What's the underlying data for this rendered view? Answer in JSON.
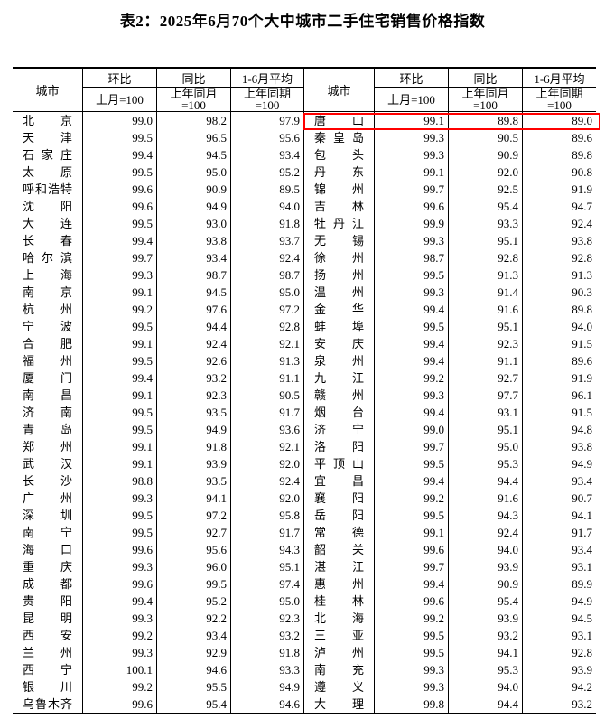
{
  "title": "表2：2025年6月70个大中城市二手住宅销售价格指数",
  "colors": {
    "background": "#ffffff",
    "text": "#000000",
    "table_border": "#000000",
    "highlight_border": "#ff0000"
  },
  "header": {
    "city": "城市",
    "mom_label": "环比",
    "mom_base": "上月=100",
    "yoy_label": "同比",
    "yoy_base_line1": "上年同月",
    "yoy_base_line2": "=100",
    "avg_label": "1-6月平均",
    "avg_base_line1": "上年同期",
    "avg_base_line2": "=100"
  },
  "highlight": {
    "city": "唐山",
    "half": "right",
    "row_index": 0,
    "values": [
      "99.1",
      "89.8",
      "89.0"
    ]
  },
  "left_rows": [
    {
      "city": "北京",
      "mom": "99.0",
      "yoy": "98.2",
      "avg": "97.9"
    },
    {
      "city": "天津",
      "mom": "99.5",
      "yoy": "96.5",
      "avg": "95.6"
    },
    {
      "city": "石家庄",
      "mom": "99.4",
      "yoy": "94.5",
      "avg": "93.4"
    },
    {
      "city": "太原",
      "mom": "99.5",
      "yoy": "95.0",
      "avg": "95.2"
    },
    {
      "city": "呼和浩特",
      "mom": "99.6",
      "yoy": "90.9",
      "avg": "89.5"
    },
    {
      "city": "沈阳",
      "mom": "99.6",
      "yoy": "94.9",
      "avg": "94.0"
    },
    {
      "city": "大连",
      "mom": "99.5",
      "yoy": "93.0",
      "avg": "91.8"
    },
    {
      "city": "长春",
      "mom": "99.4",
      "yoy": "93.8",
      "avg": "93.7"
    },
    {
      "city": "哈尔滨",
      "mom": "99.7",
      "yoy": "93.4",
      "avg": "92.4"
    },
    {
      "city": "上海",
      "mom": "99.3",
      "yoy": "98.7",
      "avg": "98.7"
    },
    {
      "city": "南京",
      "mom": "99.1",
      "yoy": "94.5",
      "avg": "95.0"
    },
    {
      "city": "杭州",
      "mom": "99.2",
      "yoy": "97.6",
      "avg": "97.2"
    },
    {
      "city": "宁波",
      "mom": "99.5",
      "yoy": "94.4",
      "avg": "92.8"
    },
    {
      "city": "合肥",
      "mom": "99.1",
      "yoy": "92.4",
      "avg": "92.1"
    },
    {
      "city": "福州",
      "mom": "99.5",
      "yoy": "92.6",
      "avg": "91.3"
    },
    {
      "city": "厦门",
      "mom": "99.4",
      "yoy": "93.2",
      "avg": "91.1"
    },
    {
      "city": "南昌",
      "mom": "99.1",
      "yoy": "92.3",
      "avg": "90.5"
    },
    {
      "city": "济南",
      "mom": "99.5",
      "yoy": "93.5",
      "avg": "91.7"
    },
    {
      "city": "青岛",
      "mom": "99.5",
      "yoy": "94.9",
      "avg": "93.6"
    },
    {
      "city": "郑州",
      "mom": "99.1",
      "yoy": "91.8",
      "avg": "92.1"
    },
    {
      "city": "武汉",
      "mom": "99.1",
      "yoy": "93.9",
      "avg": "92.0"
    },
    {
      "city": "长沙",
      "mom": "98.8",
      "yoy": "93.5",
      "avg": "92.4"
    },
    {
      "city": "广州",
      "mom": "99.3",
      "yoy": "94.1",
      "avg": "92.0"
    },
    {
      "city": "深圳",
      "mom": "99.5",
      "yoy": "97.2",
      "avg": "95.8"
    },
    {
      "city": "南宁",
      "mom": "99.5",
      "yoy": "92.7",
      "avg": "91.7"
    },
    {
      "city": "海口",
      "mom": "99.6",
      "yoy": "95.6",
      "avg": "94.3"
    },
    {
      "city": "重庆",
      "mom": "99.3",
      "yoy": "96.0",
      "avg": "95.1"
    },
    {
      "city": "成都",
      "mom": "99.6",
      "yoy": "99.5",
      "avg": "97.4"
    },
    {
      "city": "贵阳",
      "mom": "99.4",
      "yoy": "95.2",
      "avg": "95.0"
    },
    {
      "city": "昆明",
      "mom": "99.3",
      "yoy": "92.2",
      "avg": "92.3"
    },
    {
      "city": "西安",
      "mom": "99.2",
      "yoy": "93.4",
      "avg": "93.2"
    },
    {
      "city": "兰州",
      "mom": "99.3",
      "yoy": "92.9",
      "avg": "91.8"
    },
    {
      "city": "西宁",
      "mom": "100.1",
      "yoy": "94.6",
      "avg": "93.3"
    },
    {
      "city": "银川",
      "mom": "99.2",
      "yoy": "95.5",
      "avg": "94.9"
    },
    {
      "city": "乌鲁木齐",
      "mom": "99.6",
      "yoy": "95.4",
      "avg": "94.6"
    }
  ],
  "right_rows": [
    {
      "city": "唐山",
      "mom": "99.1",
      "yoy": "89.8",
      "avg": "89.0"
    },
    {
      "city": "秦皇岛",
      "mom": "99.3",
      "yoy": "90.5",
      "avg": "89.6"
    },
    {
      "city": "包头",
      "mom": "99.3",
      "yoy": "90.9",
      "avg": "89.8"
    },
    {
      "city": "丹东",
      "mom": "99.1",
      "yoy": "92.0",
      "avg": "90.8"
    },
    {
      "city": "锦州",
      "mom": "99.7",
      "yoy": "92.5",
      "avg": "91.9"
    },
    {
      "city": "吉林",
      "mom": "99.6",
      "yoy": "95.4",
      "avg": "94.7"
    },
    {
      "city": "牡丹江",
      "mom": "99.9",
      "yoy": "93.3",
      "avg": "92.4"
    },
    {
      "city": "无锡",
      "mom": "99.3",
      "yoy": "95.1",
      "avg": "93.8"
    },
    {
      "city": "徐州",
      "mom": "98.7",
      "yoy": "92.8",
      "avg": "92.8"
    },
    {
      "city": "扬州",
      "mom": "99.5",
      "yoy": "91.3",
      "avg": "91.3"
    },
    {
      "city": "温州",
      "mom": "99.3",
      "yoy": "91.4",
      "avg": "90.3"
    },
    {
      "city": "金华",
      "mom": "99.4",
      "yoy": "91.6",
      "avg": "89.8"
    },
    {
      "city": "蚌埠",
      "mom": "99.5",
      "yoy": "95.1",
      "avg": "94.0"
    },
    {
      "city": "安庆",
      "mom": "99.4",
      "yoy": "92.3",
      "avg": "91.5"
    },
    {
      "city": "泉州",
      "mom": "99.4",
      "yoy": "91.1",
      "avg": "89.6"
    },
    {
      "city": "九江",
      "mom": "99.2",
      "yoy": "92.7",
      "avg": "91.9"
    },
    {
      "city": "赣州",
      "mom": "99.3",
      "yoy": "97.7",
      "avg": "96.1"
    },
    {
      "city": "烟台",
      "mom": "99.4",
      "yoy": "93.1",
      "avg": "91.5"
    },
    {
      "city": "济宁",
      "mom": "99.0",
      "yoy": "95.1",
      "avg": "94.8"
    },
    {
      "city": "洛阳",
      "mom": "99.7",
      "yoy": "95.0",
      "avg": "93.8"
    },
    {
      "city": "平顶山",
      "mom": "99.5",
      "yoy": "95.3",
      "avg": "94.9"
    },
    {
      "city": "宜昌",
      "mom": "99.4",
      "yoy": "94.4",
      "avg": "93.4"
    },
    {
      "city": "襄阳",
      "mom": "99.2",
      "yoy": "91.6",
      "avg": "90.7"
    },
    {
      "city": "岳阳",
      "mom": "99.5",
      "yoy": "94.3",
      "avg": "94.1"
    },
    {
      "city": "常德",
      "mom": "99.1",
      "yoy": "92.4",
      "avg": "91.7"
    },
    {
      "city": "韶关",
      "mom": "99.6",
      "yoy": "94.0",
      "avg": "93.4"
    },
    {
      "city": "湛江",
      "mom": "99.7",
      "yoy": "93.9",
      "avg": "93.1"
    },
    {
      "city": "惠州",
      "mom": "99.4",
      "yoy": "90.9",
      "avg": "89.9"
    },
    {
      "city": "桂林",
      "mom": "99.6",
      "yoy": "95.4",
      "avg": "94.9"
    },
    {
      "city": "北海",
      "mom": "99.2",
      "yoy": "93.9",
      "avg": "94.5"
    },
    {
      "city": "三亚",
      "mom": "99.5",
      "yoy": "93.2",
      "avg": "93.1"
    },
    {
      "city": "泸州",
      "mom": "99.5",
      "yoy": "94.1",
      "avg": "92.8"
    },
    {
      "city": "南充",
      "mom": "99.3",
      "yoy": "95.3",
      "avg": "93.9"
    },
    {
      "city": "遵义",
      "mom": "99.3",
      "yoy": "94.0",
      "avg": "94.2"
    },
    {
      "city": "大理",
      "mom": "99.8",
      "yoy": "94.4",
      "avg": "93.2"
    }
  ]
}
